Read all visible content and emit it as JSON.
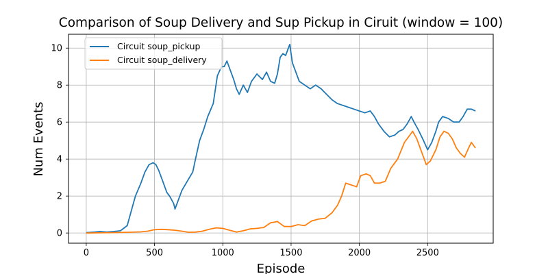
{
  "chart_data": {
    "type": "line",
    "title": "Comparison of Soup Delivery and Sup Pickup in Ciruit (window = 100)",
    "xlabel": "Episode",
    "ylabel": "Num Events",
    "xlim": [
      -130,
      2980
    ],
    "ylim": [
      -0.55,
      10.75
    ],
    "xticks": [
      0,
      500,
      1000,
      1500,
      2000,
      2500
    ],
    "yticks": [
      0,
      2,
      4,
      6,
      8,
      10
    ],
    "grid": true,
    "legend_position": "upper-left",
    "series": [
      {
        "name": "Circuit soup_pickup",
        "color": "#1f77b4",
        "points": [
          [
            0,
            0.02
          ],
          [
            60,
            0.05
          ],
          [
            100,
            0.08
          ],
          [
            150,
            0.05
          ],
          [
            200,
            0.08
          ],
          [
            250,
            0.12
          ],
          [
            300,
            0.4
          ],
          [
            330,
            1.2
          ],
          [
            360,
            2.0
          ],
          [
            400,
            2.7
          ],
          [
            430,
            3.3
          ],
          [
            460,
            3.7
          ],
          [
            490,
            3.8
          ],
          [
            510,
            3.7
          ],
          [
            530,
            3.4
          ],
          [
            560,
            2.8
          ],
          [
            590,
            2.2
          ],
          [
            610,
            2.0
          ],
          [
            640,
            1.6
          ],
          [
            650,
            1.3
          ],
          [
            670,
            1.7
          ],
          [
            700,
            2.3
          ],
          [
            740,
            2.8
          ],
          [
            780,
            3.3
          ],
          [
            800,
            4.0
          ],
          [
            830,
            5.0
          ],
          [
            860,
            5.6
          ],
          [
            890,
            6.3
          ],
          [
            930,
            7.0
          ],
          [
            960,
            8.5
          ],
          [
            990,
            9.0
          ],
          [
            1010,
            9.0
          ],
          [
            1030,
            9.3
          ],
          [
            1050,
            8.9
          ],
          [
            1080,
            8.3
          ],
          [
            1100,
            7.8
          ],
          [
            1120,
            7.5
          ],
          [
            1150,
            8.0
          ],
          [
            1180,
            7.6
          ],
          [
            1210,
            8.2
          ],
          [
            1250,
            8.6
          ],
          [
            1290,
            8.3
          ],
          [
            1320,
            8.7
          ],
          [
            1350,
            8.2
          ],
          [
            1380,
            8.1
          ],
          [
            1400,
            8.6
          ],
          [
            1420,
            9.5
          ],
          [
            1440,
            9.7
          ],
          [
            1460,
            9.6
          ],
          [
            1490,
            10.2
          ],
          [
            1510,
            9.2
          ],
          [
            1530,
            8.8
          ],
          [
            1560,
            8.2
          ],
          [
            1600,
            8.0
          ],
          [
            1640,
            7.8
          ],
          [
            1680,
            8.0
          ],
          [
            1720,
            7.8
          ],
          [
            1760,
            7.5
          ],
          [
            1800,
            7.2
          ],
          [
            1840,
            7.0
          ],
          [
            1880,
            6.9
          ],
          [
            1920,
            6.8
          ],
          [
            1960,
            6.7
          ],
          [
            2000,
            6.6
          ],
          [
            2040,
            6.5
          ],
          [
            2080,
            6.6
          ],
          [
            2110,
            6.3
          ],
          [
            2140,
            5.9
          ],
          [
            2180,
            5.5
          ],
          [
            2220,
            5.2
          ],
          [
            2260,
            5.3
          ],
          [
            2290,
            5.5
          ],
          [
            2320,
            5.6
          ],
          [
            2350,
            5.9
          ],
          [
            2380,
            6.3
          ],
          [
            2400,
            6.0
          ],
          [
            2430,
            5.6
          ],
          [
            2470,
            5.0
          ],
          [
            2500,
            4.5
          ],
          [
            2530,
            4.9
          ],
          [
            2560,
            5.5
          ],
          [
            2580,
            6.0
          ],
          [
            2610,
            6.3
          ],
          [
            2650,
            6.2
          ],
          [
            2690,
            6.0
          ],
          [
            2730,
            6.0
          ],
          [
            2760,
            6.3
          ],
          [
            2790,
            6.7
          ],
          [
            2820,
            6.7
          ],
          [
            2850,
            6.6
          ]
        ]
      },
      {
        "name": "Circuit soup_delivery",
        "color": "#ff7f0e",
        "points": [
          [
            0,
            0.0
          ],
          [
            100,
            0.01
          ],
          [
            200,
            0.02
          ],
          [
            300,
            0.04
          ],
          [
            400,
            0.06
          ],
          [
            450,
            0.1
          ],
          [
            500,
            0.18
          ],
          [
            550,
            0.2
          ],
          [
            600,
            0.18
          ],
          [
            650,
            0.15
          ],
          [
            700,
            0.1
          ],
          [
            750,
            0.04
          ],
          [
            800,
            0.05
          ],
          [
            850,
            0.1
          ],
          [
            900,
            0.2
          ],
          [
            950,
            0.28
          ],
          [
            1000,
            0.25
          ],
          [
            1050,
            0.15
          ],
          [
            1100,
            0.05
          ],
          [
            1150,
            0.12
          ],
          [
            1200,
            0.22
          ],
          [
            1250,
            0.25
          ],
          [
            1300,
            0.3
          ],
          [
            1350,
            0.55
          ],
          [
            1400,
            0.62
          ],
          [
            1450,
            0.35
          ],
          [
            1500,
            0.35
          ],
          [
            1550,
            0.45
          ],
          [
            1600,
            0.4
          ],
          [
            1650,
            0.65
          ],
          [
            1700,
            0.75
          ],
          [
            1750,
            0.8
          ],
          [
            1800,
            1.1
          ],
          [
            1840,
            1.5
          ],
          [
            1870,
            2.0
          ],
          [
            1900,
            2.7
          ],
          [
            1940,
            2.6
          ],
          [
            1980,
            2.5
          ],
          [
            2010,
            3.1
          ],
          [
            2050,
            3.2
          ],
          [
            2080,
            3.1
          ],
          [
            2110,
            2.7
          ],
          [
            2150,
            2.7
          ],
          [
            2190,
            2.8
          ],
          [
            2230,
            3.5
          ],
          [
            2280,
            4.0
          ],
          [
            2330,
            4.9
          ],
          [
            2370,
            5.3
          ],
          [
            2390,
            5.5
          ],
          [
            2420,
            5.1
          ],
          [
            2460,
            4.3
          ],
          [
            2490,
            3.7
          ],
          [
            2520,
            3.9
          ],
          [
            2560,
            4.5
          ],
          [
            2590,
            5.2
          ],
          [
            2620,
            5.5
          ],
          [
            2650,
            5.4
          ],
          [
            2680,
            5.1
          ],
          [
            2710,
            4.6
          ],
          [
            2740,
            4.3
          ],
          [
            2770,
            4.1
          ],
          [
            2800,
            4.6
          ],
          [
            2820,
            4.9
          ],
          [
            2850,
            4.6
          ]
        ]
      }
    ]
  }
}
